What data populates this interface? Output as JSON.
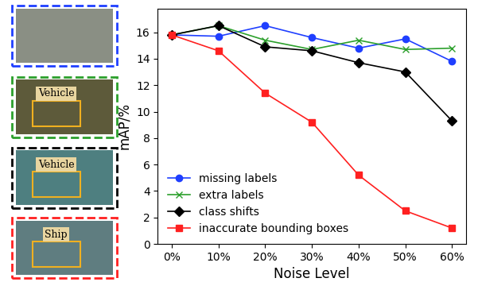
{
  "chart_data": {
    "type": "line",
    "x_label": "Noise Level",
    "y_label": "mAP/%",
    "x": [
      0,
      10,
      20,
      30,
      40,
      50,
      60
    ],
    "series": [
      {
        "name": "missing labels",
        "color": "#1f3fff",
        "marker": "o",
        "values": [
          15.8,
          15.7,
          16.5,
          15.6,
          14.8,
          15.5,
          13.8
        ]
      },
      {
        "name": "extra labels",
        "color": "#2ca02c",
        "marker": "x",
        "values": [
          15.8,
          16.5,
          15.4,
          14.7,
          15.4,
          14.7,
          14.8
        ]
      },
      {
        "name": "class shifts",
        "color": "#000000",
        "marker": "D",
        "values": [
          15.8,
          16.5,
          14.9,
          14.6,
          13.7,
          13.0,
          9.3
        ]
      },
      {
        "name": "inaccurate bounding boxes",
        "color": "#ff2020",
        "marker": "s",
        "values": [
          15.8,
          14.6,
          11.4,
          9.2,
          5.2,
          2.5,
          1.2
        ]
      }
    ],
    "xlim": [
      -3,
      63
    ],
    "xticks": [
      {
        "value": 0,
        "label": "0%"
      },
      {
        "value": 10,
        "label": "10%"
      },
      {
        "value": 20,
        "label": "20%"
      },
      {
        "value": 30,
        "label": "30%"
      },
      {
        "value": 40,
        "label": "40%"
      },
      {
        "value": 50,
        "label": "50%"
      },
      {
        "value": 60,
        "label": "60%"
      }
    ],
    "ylim": [
      0,
      17.8
    ],
    "yticks": [
      0,
      2,
      4,
      6,
      8,
      10,
      12,
      14,
      16
    ],
    "grid": false,
    "legend": "lower left"
  },
  "example_labels": [
    "Vehicle",
    "Vehicle",
    "Ship"
  ]
}
